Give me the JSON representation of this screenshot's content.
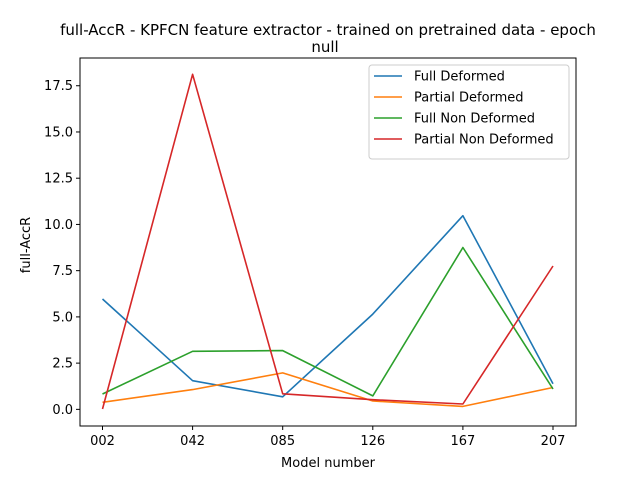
{
  "chart_data": {
    "type": "line",
    "title_line1": "full-AccR - KPFCN feature extractor -  trained on pretrained data -  epoch",
    "title_line2": "null",
    "xlabel": "Model number",
    "ylabel": "full-AccR",
    "categories": [
      "002",
      "042",
      "085",
      "126",
      "167",
      "207"
    ],
    "ylim": [
      -0.9,
      19.0
    ],
    "yticks": [
      0.0,
      2.5,
      5.0,
      7.5,
      10.0,
      12.5,
      15.0,
      17.5
    ],
    "ytick_labels": [
      "0.0",
      "2.5",
      "5.0",
      "7.5",
      "10.0",
      "12.5",
      "15.0",
      "17.5"
    ],
    "grid": false,
    "legend_position": "top-right",
    "series": [
      {
        "name": "Full Deformed",
        "color": "#1f77b4",
        "values": [
          5.97,
          1.55,
          0.68,
          5.15,
          10.47,
          1.38
        ]
      },
      {
        "name": "Partial Deformed",
        "color": "#ff7f0e",
        "values": [
          0.38,
          1.07,
          1.97,
          0.45,
          0.16,
          1.18
        ]
      },
      {
        "name": "Full Non Deformed",
        "color": "#2ca02c",
        "values": [
          0.83,
          3.14,
          3.18,
          0.73,
          8.75,
          1.1
        ]
      },
      {
        "name": "Partial Non Deformed",
        "color": "#d62728",
        "values": [
          0.02,
          18.12,
          0.84,
          0.52,
          0.29,
          7.75
        ]
      }
    ]
  }
}
